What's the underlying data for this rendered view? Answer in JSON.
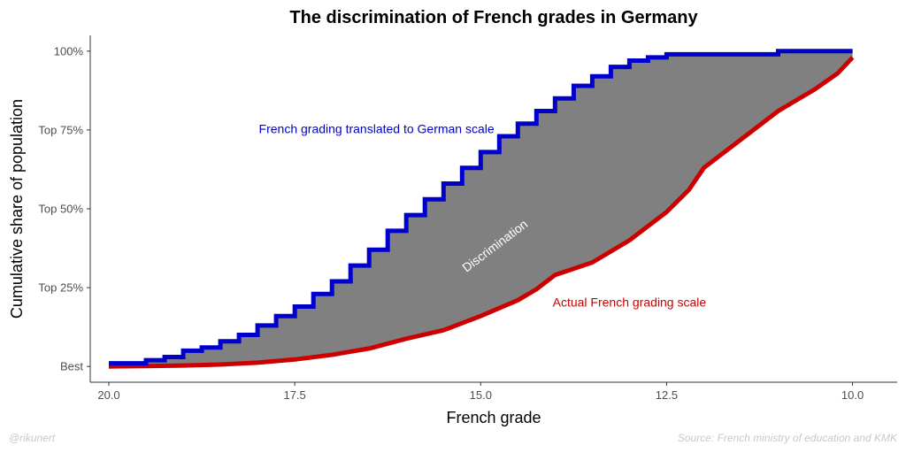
{
  "chart_data": {
    "type": "area",
    "title": "The discrimination of French grades in Germany",
    "xlabel": "French grade",
    "ylabel": "Cumulative share of population",
    "x_reversed": true,
    "xlim": [
      20.25,
      9.4
    ],
    "ylim": [
      -0.05,
      1.05
    ],
    "x_ticks": [
      {
        "value": 20,
        "label": "20.0"
      },
      {
        "value": 17.5,
        "label": "17.5"
      },
      {
        "value": 15,
        "label": "15.0"
      },
      {
        "value": 12.5,
        "label": "12.5"
      },
      {
        "value": 10,
        "label": "10.0"
      }
    ],
    "y_ticks": [
      {
        "value": 0,
        "label": "Best"
      },
      {
        "value": 0.25,
        "label": "Top 25%"
      },
      {
        "value": 0.5,
        "label": "Top 50%"
      },
      {
        "value": 0.75,
        "label": "Top 75%"
      },
      {
        "value": 1.0,
        "label": "100%"
      }
    ],
    "grid": false,
    "fill_color": "#808080",
    "series": [
      {
        "name": "French grading translated to German scale",
        "color": "#0000CD",
        "step": true,
        "points": [
          [
            20.0,
            0.01
          ],
          [
            19.75,
            0.01
          ],
          [
            19.5,
            0.02
          ],
          [
            19.25,
            0.03
          ],
          [
            19.0,
            0.05
          ],
          [
            18.75,
            0.06
          ],
          [
            18.5,
            0.08
          ],
          [
            18.25,
            0.1
          ],
          [
            18.0,
            0.13
          ],
          [
            17.75,
            0.16
          ],
          [
            17.5,
            0.19
          ],
          [
            17.25,
            0.23
          ],
          [
            17.0,
            0.27
          ],
          [
            16.75,
            0.32
          ],
          [
            16.5,
            0.37
          ],
          [
            16.25,
            0.43
          ],
          [
            16.0,
            0.48
          ],
          [
            15.75,
            0.53
          ],
          [
            15.5,
            0.58
          ],
          [
            15.25,
            0.63
          ],
          [
            15.0,
            0.68
          ],
          [
            14.75,
            0.73
          ],
          [
            14.5,
            0.77
          ],
          [
            14.25,
            0.81
          ],
          [
            14.0,
            0.85
          ],
          [
            13.75,
            0.89
          ],
          [
            13.5,
            0.92
          ],
          [
            13.25,
            0.95
          ],
          [
            13.0,
            0.97
          ],
          [
            12.75,
            0.98
          ],
          [
            12.5,
            0.99
          ],
          [
            11.0,
            1.0
          ],
          [
            10.0,
            1.0
          ]
        ]
      },
      {
        "name": "Actual French grading scale",
        "color": "#CC0000",
        "step": false,
        "points": [
          [
            20.0,
            0.0
          ],
          [
            19.5,
            0.001
          ],
          [
            19.0,
            0.003
          ],
          [
            18.5,
            0.006
          ],
          [
            18.0,
            0.012
          ],
          [
            17.5,
            0.022
          ],
          [
            17.0,
            0.037
          ],
          [
            16.5,
            0.057
          ],
          [
            16.0,
            0.088
          ],
          [
            15.5,
            0.115
          ],
          [
            15.0,
            0.16
          ],
          [
            14.5,
            0.21
          ],
          [
            14.25,
            0.245
          ],
          [
            14.0,
            0.29
          ],
          [
            13.5,
            0.33
          ],
          [
            13.0,
            0.4
          ],
          [
            12.5,
            0.49
          ],
          [
            12.2,
            0.56
          ],
          [
            12.0,
            0.63
          ],
          [
            11.5,
            0.72
          ],
          [
            11.0,
            0.81
          ],
          [
            10.5,
            0.88
          ],
          [
            10.2,
            0.93
          ],
          [
            10.0,
            0.98
          ]
        ]
      }
    ],
    "annotations": [
      {
        "text": "French grading translated to German scale",
        "x": 16.4,
        "y": 0.75,
        "color": "#0000CD"
      },
      {
        "text": "Actual French grading scale",
        "x": 13.0,
        "y": 0.2,
        "color": "#CC0000"
      },
      {
        "text": "Discrimination",
        "x": 14.8,
        "y": 0.38,
        "color": "#ffffff",
        "rotation": -37
      }
    ]
  },
  "captions": {
    "left": "@rikunert",
    "right": "Source: French ministry of education and KMK"
  }
}
